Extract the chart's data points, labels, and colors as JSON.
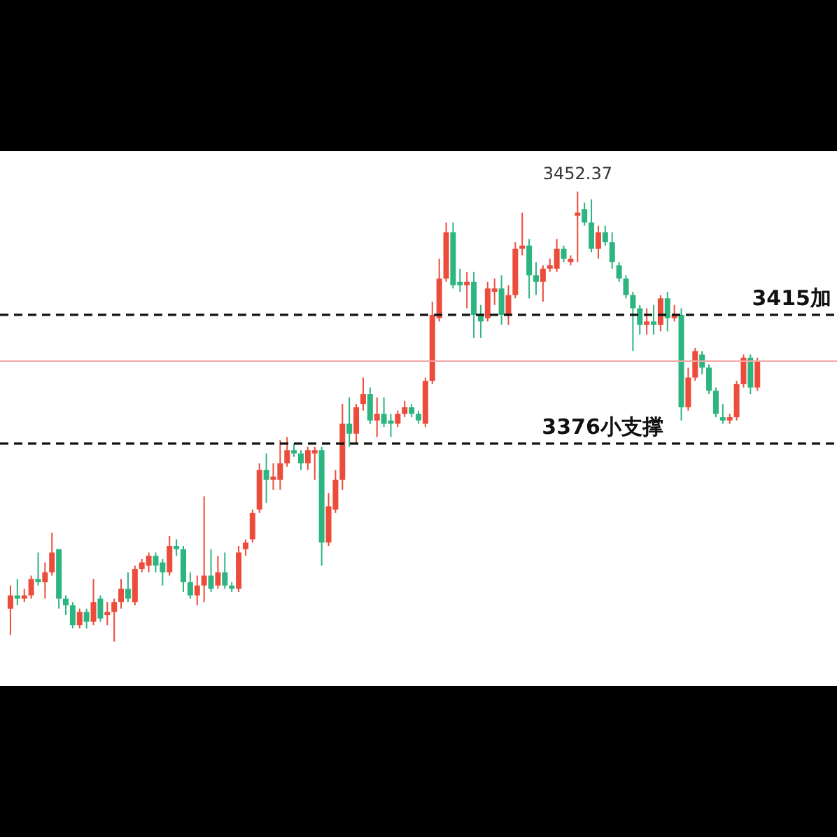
{
  "chart_data": {
    "type": "candlestick",
    "categories": [
      null,
      null,
      null,
      null,
      null,
      null,
      null,
      null,
      null,
      null,
      null,
      null,
      null,
      null,
      null,
      null,
      null,
      null,
      null,
      null,
      null,
      null,
      null,
      null,
      null,
      null,
      null,
      null,
      null,
      null,
      null,
      null,
      null,
      null,
      null,
      null,
      null,
      null,
      null,
      null,
      null,
      null,
      null,
      null,
      null,
      null,
      null,
      null,
      null,
      null,
      null,
      null,
      null,
      null,
      null,
      null,
      null,
      null,
      null,
      null,
      null,
      null,
      null,
      null,
      null,
      null,
      null,
      null,
      null,
      null,
      null,
      null,
      null,
      null,
      null,
      null,
      null,
      null,
      null,
      null,
      null,
      null,
      null,
      null,
      null,
      null,
      null,
      null,
      null,
      null,
      null,
      null,
      null,
      null,
      null,
      null,
      null,
      null,
      null,
      null,
      null,
      null,
      null,
      null,
      null,
      null,
      null,
      null,
      null
    ],
    "ohlc": [
      [
        3326,
        3333,
        3318,
        3330
      ],
      [
        3330,
        3335,
        3327,
        3329
      ],
      [
        3329,
        3332,
        3328,
        3330
      ],
      [
        3330,
        3336,
        3329,
        3335
      ],
      [
        3335,
        3343,
        3333,
        3334
      ],
      [
        3334,
        3340,
        3329,
        3337
      ],
      [
        3337,
        3349,
        3336,
        3343
      ],
      [
        3344,
        3344,
        3326,
        3329
      ],
      [
        3329,
        3330,
        3324,
        3327
      ],
      [
        3327,
        3328,
        3320,
        3321
      ],
      [
        3321,
        3326,
        3320,
        3325
      ],
      [
        3325,
        3326,
        3320,
        3322
      ],
      [
        3322,
        3335,
        3321,
        3328
      ],
      [
        3329,
        3330,
        3322,
        3323
      ],
      [
        3324,
        3328,
        3321,
        3325
      ],
      [
        3325,
        3329,
        3316,
        3328
      ],
      [
        3328,
        3335,
        3326,
        3332
      ],
      [
        3332,
        3337,
        3328,
        3329
      ],
      [
        3328,
        3339,
        3327,
        3338
      ],
      [
        3338,
        3341,
        3337,
        3340
      ],
      [
        3339,
        3343,
        3337,
        3342
      ],
      [
        3342,
        3343,
        3337,
        3339
      ],
      [
        3340,
        3341,
        3333,
        3337
      ],
      [
        3337,
        3348,
        3336,
        3345
      ],
      [
        3345,
        3347,
        3342,
        3344
      ],
      [
        3344,
        3345,
        3331,
        3334
      ],
      [
        3334,
        3337,
        3329,
        3330
      ],
      [
        3330,
        3336,
        3327,
        3333
      ],
      [
        3333,
        3360,
        3328,
        3336
      ],
      [
        3336,
        3344,
        3331,
        3332
      ],
      [
        3333,
        3342,
        3332,
        3337
      ],
      [
        3337,
        3343,
        3332,
        3333
      ],
      [
        3333,
        3334,
        3331,
        3332
      ],
      [
        3332,
        3345,
        3331,
        3343
      ],
      [
        3344,
        3347,
        3342,
        3346
      ],
      [
        3347,
        3356,
        3346,
        3355
      ],
      [
        3356,
        3370,
        3355,
        3368
      ],
      [
        3368,
        3373,
        3358,
        3365
      ],
      [
        3365,
        3370,
        3362,
        3366
      ],
      [
        3365,
        3377,
        3362,
        3370
      ],
      [
        3370,
        3378,
        3369,
        3374
      ],
      [
        3374,
        3376,
        3372,
        3373
      ],
      [
        3373,
        3374,
        3368,
        3370
      ],
      [
        3370,
        3375,
        3368,
        3374
      ],
      [
        3373,
        3375,
        3365,
        3374
      ],
      [
        3374,
        3375,
        3339,
        3346
      ],
      [
        3346,
        3361,
        3345,
        3357
      ],
      [
        3356,
        3368,
        3355,
        3365
      ],
      [
        3365,
        3388,
        3362,
        3382
      ],
      [
        3382,
        3390,
        3375,
        3379
      ],
      [
        3379,
        3388,
        3376,
        3387
      ],
      [
        3388,
        3396,
        3386,
        3391
      ],
      [
        3391,
        3393,
        3382,
        3383
      ],
      [
        3383,
        3390,
        3378,
        3385
      ],
      [
        3385,
        3390,
        3381,
        3382
      ],
      [
        3383,
        3385,
        3378,
        3382
      ],
      [
        3382,
        3386,
        3381,
        3385
      ],
      [
        3385,
        3389,
        3384,
        3387
      ],
      [
        3387,
        3388,
        3384,
        3385
      ],
      [
        3385,
        3386,
        3382,
        3383
      ],
      [
        3382,
        3396,
        3381,
        3395
      ],
      [
        3395,
        3419,
        3394,
        3415
      ],
      [
        3414,
        3432,
        3413,
        3426
      ],
      [
        3426,
        3443,
        3425,
        3440
      ],
      [
        3440,
        3443,
        3423,
        3424
      ],
      [
        3425,
        3429,
        3422,
        3424
      ],
      [
        3424,
        3428,
        3417,
        3425
      ],
      [
        3425,
        3428,
        3408,
        3415
      ],
      [
        3415,
        3418,
        3408,
        3413
      ],
      [
        3414,
        3425,
        3413,
        3423
      ],
      [
        3422,
        3426,
        3418,
        3423
      ],
      [
        3423,
        3427,
        3412,
        3415
      ],
      [
        3415,
        3424,
        3412,
        3421
      ],
      [
        3421,
        3437,
        3420,
        3435
      ],
      [
        3435,
        3446,
        3433,
        3436
      ],
      [
        3436,
        3438,
        3420,
        3427
      ],
      [
        3427,
        3431,
        3421,
        3425
      ],
      [
        3425,
        3430,
        3419,
        3429
      ],
      [
        3429,
        3432,
        3428,
        3430
      ],
      [
        3429,
        3438,
        3428,
        3435
      ],
      [
        3435,
        3436,
        3431,
        3432
      ],
      [
        3431,
        3433,
        3430,
        3432
      ],
      [
        3445,
        3452.37,
        3431,
        3446
      ],
      [
        3447,
        3449,
        3442,
        3443
      ],
      [
        3443,
        3450,
        3434,
        3435
      ],
      [
        3435,
        3442,
        3432,
        3440
      ],
      [
        3440,
        3442,
        3436,
        3437
      ],
      [
        3437,
        3440,
        3429,
        3431
      ],
      [
        3430,
        3431,
        3425,
        3426
      ],
      [
        3426,
        3427,
        3420,
        3421
      ],
      [
        3421,
        3422,
        3404,
        3417
      ],
      [
        3417,
        3418,
        3409,
        3412
      ],
      [
        3412,
        3417,
        3409,
        3413
      ],
      [
        3413,
        3418,
        3409,
        3412
      ],
      [
        3412,
        3421,
        3410,
        3420
      ],
      [
        3420,
        3422,
        3410,
        3414
      ],
      [
        3414,
        3418,
        3413,
        3415
      ],
      [
        3415,
        3417,
        3383,
        3387
      ],
      [
        3387,
        3399,
        3386,
        3396
      ],
      [
        3396,
        3405,
        3395,
        3404
      ],
      [
        3403,
        3404,
        3397,
        3399
      ],
      [
        3399,
        3400,
        3391,
        3392
      ],
      [
        3392,
        3393,
        3384,
        3385
      ],
      [
        3384,
        3388,
        3382,
        3383
      ],
      [
        3383,
        3385,
        3382,
        3384
      ],
      [
        3384,
        3395,
        3383,
        3394
      ],
      [
        3394,
        3403,
        3393,
        3402
      ],
      [
        3402,
        3403,
        3391,
        3393
      ],
      [
        3393,
        3402,
        3392,
        3401
      ]
    ],
    "colors": [
      "#ec4c3c",
      "#2db581",
      "#ec4c3c",
      "#ec4c3c",
      "#2db581",
      "#ec4c3c",
      "#ec4c3c",
      "#2db581",
      "#2db581",
      "#2db581",
      "#ec4c3c",
      "#2db581",
      "#ec4c3c",
      "#2db581",
      "#ec4c3c",
      "#ec4c3c",
      "#ec4c3c",
      "#2db581",
      "#ec4c3c",
      "#ec4c3c",
      "#ec4c3c",
      "#2db581",
      "#2db581",
      "#ec4c3c",
      "#2db581",
      "#2db581",
      "#2db581",
      "#ec4c3c",
      "#ec4c3c",
      "#2db581",
      "#ec4c3c",
      "#2db581",
      "#2db581",
      "#ec4c3c",
      "#ec4c3c",
      "#ec4c3c",
      "#ec4c3c",
      "#2db581",
      "#ec4c3c",
      "#ec4c3c",
      "#ec4c3c",
      "#2db581",
      "#2db581",
      "#ec4c3c",
      "#ec4c3c",
      "#2db581",
      "#ec4c3c",
      "#ec4c3c",
      "#ec4c3c",
      "#2db581",
      "#ec4c3c",
      "#ec4c3c",
      "#2db581",
      "#ec4c3c",
      "#2db581",
      "#2db581",
      "#ec4c3c",
      "#ec4c3c",
      "#2db581",
      "#2db581",
      "#ec4c3c",
      "#ec4c3c",
      "#ec4c3c",
      "#ec4c3c",
      "#2db581",
      "#2db581",
      "#ec4c3c",
      "#2db581",
      "#2db581",
      "#ec4c3c",
      "#ec4c3c",
      "#2db581",
      "#ec4c3c",
      "#ec4c3c",
      "#ec4c3c",
      "#2db581",
      "#2db581",
      "#ec4c3c",
      "#ec4c3c",
      "#ec4c3c",
      "#2db581",
      "#ec4c3c",
      "#ec4c3c",
      "#2db581",
      "#2db581",
      "#ec4c3c",
      "#2db581",
      "#2db581",
      "#2db581",
      "#2db581",
      "#2db581",
      "#2db581",
      "#ec4c3c",
      "#2db581",
      "#ec4c3c",
      "#2db581",
      "#ec4c3c",
      "#2db581",
      "#ec4c3c",
      "#ec4c3c",
      "#2db581",
      "#2db581",
      "#2db581",
      "#2db581",
      "#ec4c3c",
      "#ec4c3c",
      "#ec4c3c",
      "#2db581",
      "#ec4c3c"
    ],
    "ylim": [
      3302.6,
      3464.6
    ],
    "tick_labels": false,
    "grid": false,
    "ref_lines": [
      {
        "axis": "y",
        "value": 3401,
        "color": "#f4a6a6",
        "line_style": "solid"
      },
      {
        "axis": "y",
        "value": 3415,
        "label": "3415加",
        "color": "#111111",
        "line_style": "dashed"
      },
      {
        "axis": "y",
        "value": 3376,
        "label": "3376小支撑",
        "color": "#111111",
        "line_style": "dashed"
      }
    ],
    "annotations": [
      {
        "text": "3452.37",
        "y": 3452.37
      }
    ]
  }
}
